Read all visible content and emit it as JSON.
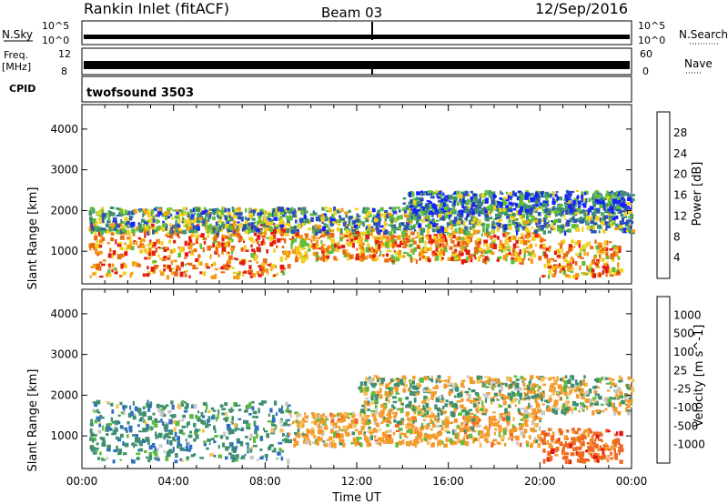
{
  "header": {
    "title": "Rankin Inlet (fitACF)",
    "beam": "Beam 03",
    "date": "12/Sep/2016"
  },
  "status_panels": {
    "nsky_label": "N.Sky",
    "nsky_ticks": [
      "10^5",
      "10^0"
    ],
    "nsearch_label": "N.Search",
    "nsearch_ticks": [
      "10^5",
      "10^0"
    ],
    "freq_label": "Freq.",
    "freq_unit": "[MHz]",
    "freq_ticks": [
      "12",
      "8"
    ],
    "nave_label": "Nave",
    "nave_ticks": [
      "60",
      "0"
    ],
    "cpid_label": "CPID",
    "cpid_value": "twofsound 3503"
  },
  "chart_data": [
    {
      "type": "heatmap",
      "name": "power",
      "ylabel": "Slant Range [km]",
      "ylim": [
        200,
        4600
      ],
      "yticks": [
        1000,
        2000,
        3000,
        4000
      ],
      "colorbar_label": "Power [dB]",
      "colorbar_ticks": [
        4,
        8,
        12,
        16,
        20,
        24,
        28
      ],
      "colorbar_colors": [
        "#1420ff",
        "#2c4fb8",
        "#3f8f70",
        "#5fbf3c",
        "#f2d11e",
        "#f59a12",
        "#ea6a12",
        "#e11b13"
      ],
      "bands": [
        {
          "t0": 0.3,
          "t1": 9.0,
          "r0": 400,
          "r1": 1700,
          "level": 24
        },
        {
          "t0": 9.0,
          "t1": 20.0,
          "r0": 800,
          "r1": 1500,
          "level": 22
        },
        {
          "t0": 20.0,
          "t1": 23.5,
          "r0": 400,
          "r1": 1300,
          "level": 23
        },
        {
          "t0": 0.3,
          "t1": 24.0,
          "r0": 1500,
          "r1": 2100,
          "level": 12
        },
        {
          "t0": 14.0,
          "t1": 24.0,
          "r0": 2000,
          "r1": 2500,
          "level": 8
        }
      ]
    },
    {
      "type": "heatmap",
      "name": "velocity",
      "ylabel": "Slant Range [km]",
      "ylim": [
        200,
        4600
      ],
      "yticks": [
        1000,
        2000,
        3000,
        4000
      ],
      "xlabel": "Time UT",
      "xticks": [
        "00:00",
        "04:00",
        "08:00",
        "12:00",
        "16:00",
        "20:00",
        "00:00"
      ],
      "xlim": [
        0,
        24
      ],
      "colorbar_label": "Velocity [m s^-1]",
      "colorbar_ticks": [
        1000,
        500,
        100,
        25,
        -25,
        -100,
        -500,
        -1000
      ],
      "colorbar_colors": [
        "#2f3fb0",
        "#2f6fc0",
        "#3e8f6e",
        "#5ebd3c",
        "#c8c8c8",
        "#f4c25a",
        "#f39a2b",
        "#ef6820",
        "#e21613"
      ],
      "bands": [
        {
          "t0": 0.3,
          "t1": 9.0,
          "r0": 400,
          "r1": 1900,
          "level": 300
        },
        {
          "t0": 9.0,
          "t1": 20.0,
          "r0": 800,
          "r1": 1600,
          "level": -200
        },
        {
          "t0": 20.0,
          "t1": 23.5,
          "r0": 400,
          "r1": 1200,
          "level": -700
        },
        {
          "t0": 12.0,
          "t1": 24.0,
          "r0": 1600,
          "r1": 2500,
          "level": 0
        }
      ]
    }
  ]
}
